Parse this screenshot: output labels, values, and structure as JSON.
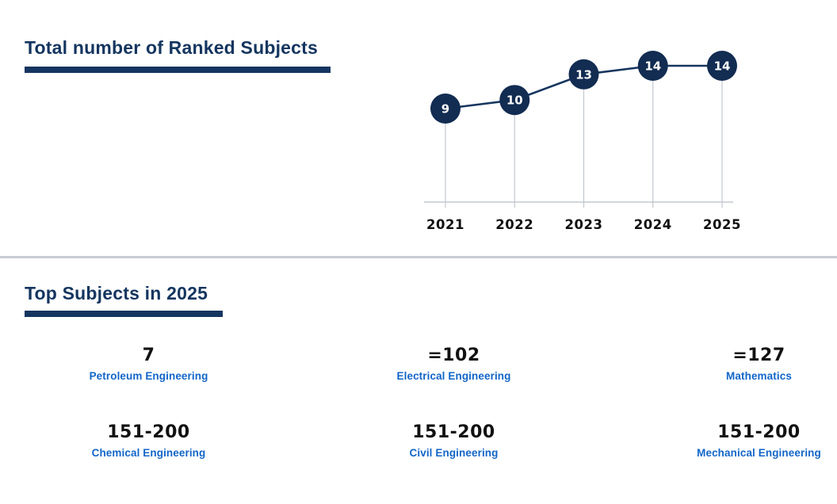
{
  "colors": {
    "navy": "#14355f",
    "marker_fill": "#122c52",
    "line": "#16365f",
    "gridline": "#c2c8d0",
    "axis": "#c2c8d0",
    "year_label": "#111111",
    "value_text": "#ffffff",
    "accent_blue": "#1266c9",
    "rank_text": "#111111",
    "divider": "#c7cbd5",
    "background": "#ffffff"
  },
  "section_ranked": {
    "title": "Total number of Ranked Subjects"
  },
  "chart_data": {
    "type": "line",
    "title": "Total number of Ranked Subjects",
    "x": [
      "2021",
      "2022",
      "2023",
      "2024",
      "2025"
    ],
    "values": [
      9,
      10,
      13,
      14,
      14
    ],
    "xlabel": "",
    "ylabel": "",
    "ylim": [
      0,
      16
    ],
    "grid": "vertical-droplines-only",
    "legend": "none",
    "marker_style": "filled-circle-with-value-label",
    "annotations": [
      "9",
      "10",
      "13",
      "14",
      "14"
    ]
  },
  "section_top": {
    "title": "Top Subjects in 2025",
    "subjects": [
      {
        "rank": "7",
        "name": "Petroleum Engineering"
      },
      {
        "rank": "=102",
        "name": "Electrical Engineering"
      },
      {
        "rank": "=127",
        "name": "Mathematics"
      },
      {
        "rank": "151-200",
        "name": "Chemical Engineering"
      },
      {
        "rank": "151-200",
        "name": "Civil Engineering"
      },
      {
        "rank": "151-200",
        "name": "Mechanical Engineering"
      }
    ]
  }
}
